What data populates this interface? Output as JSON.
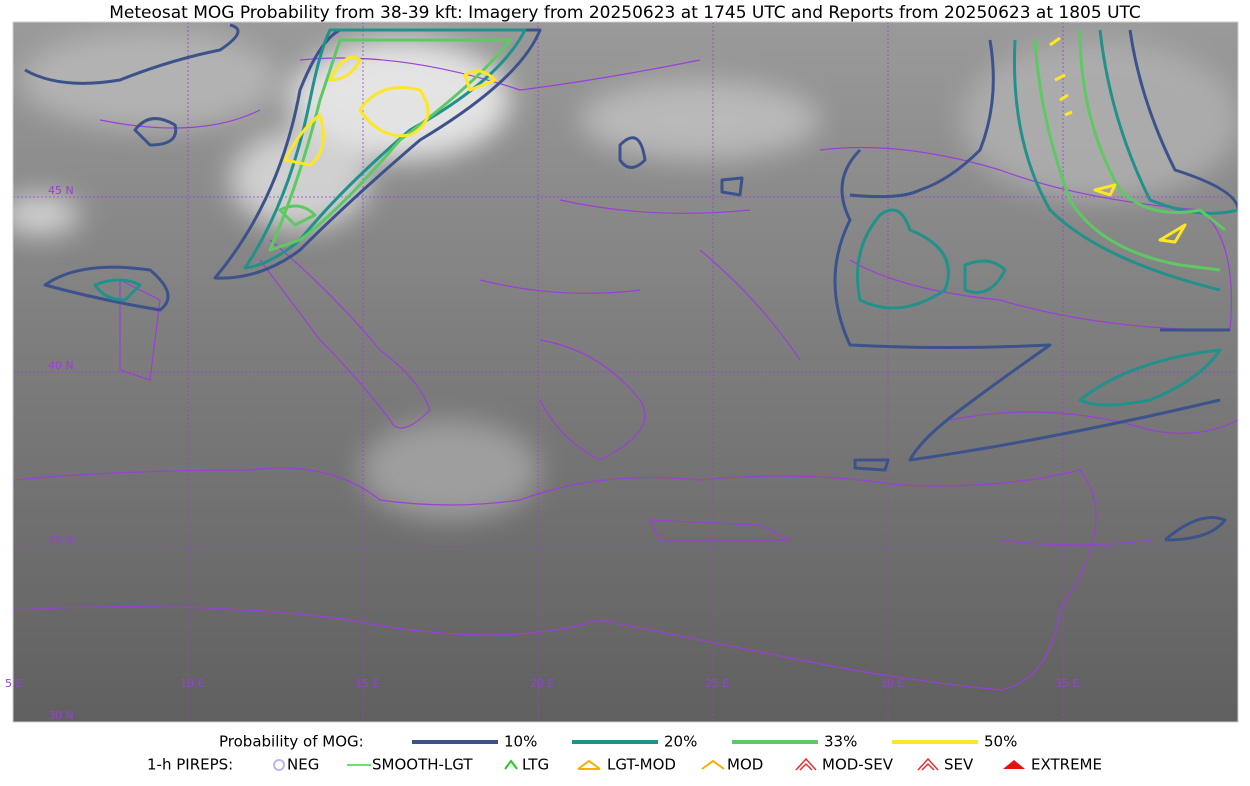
{
  "header": {
    "title": "Meteosat MOG Probability from 38-39 kft: Imagery from 20250623 at 1745 UTC and Reports from 20250623 at 1805 UTC"
  },
  "map": {
    "lat_labels": [
      "45 N",
      "40 N",
      "35 N",
      "30 N"
    ],
    "lon_labels": [
      "5 E",
      "10 E",
      "15 E",
      "20 E",
      "25 E",
      "30 E",
      "35 E"
    ],
    "grid_color": "#9b3fd6"
  },
  "legend": {
    "probability": {
      "label": "Probability of MOG:",
      "items": [
        {
          "label": "10%",
          "color": "#3b528b"
        },
        {
          "label": "20%",
          "color": "#21918c"
        },
        {
          "label": "33%",
          "color": "#5ec962"
        },
        {
          "label": "50%",
          "color": "#fde725"
        }
      ]
    },
    "pireps": {
      "label": "1-h PIREPS:",
      "items": [
        {
          "label": "NEG",
          "color": "#b9b9f0"
        },
        {
          "label": "SMOOTH-LGT",
          "color": "#33dd33"
        },
        {
          "label": "LTG",
          "color": "#22cc22"
        },
        {
          "label": "LGT-MOD",
          "color": "#f5b000"
        },
        {
          "label": "MOD",
          "color": "#f5b000"
        },
        {
          "label": "MOD-SEV",
          "color": "#e83030"
        },
        {
          "label": "SEV",
          "color": "#e83030"
        },
        {
          "label": "EXTREME",
          "color": "#e81010"
        }
      ]
    }
  }
}
